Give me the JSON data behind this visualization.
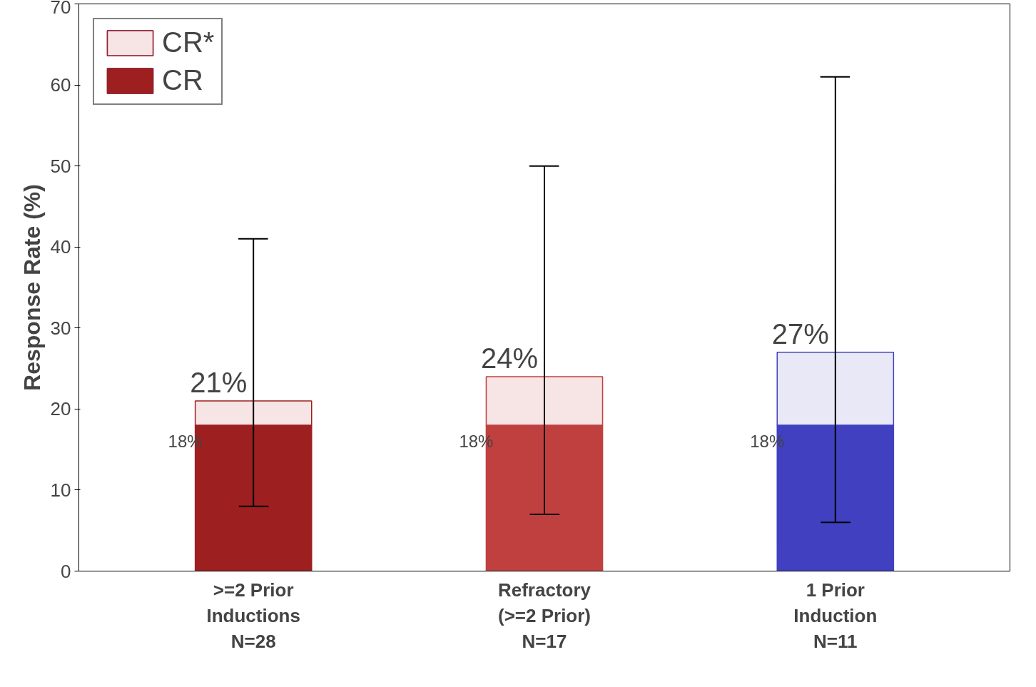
{
  "chart_data": {
    "type": "bar",
    "stacked": true,
    "ylabel": "Response Rate (%)",
    "categories": [
      ">=2 Prior\nInductions\nN=28",
      "Refractory\n(>=2 Prior)\nN=17",
      "1 Prior\nInduction\nN=11"
    ],
    "series": [
      {
        "name": "CR",
        "colors": [
          "#9e1f1f",
          "#c04040",
          "#4040c0"
        ],
        "values": [
          18,
          18,
          18
        ],
        "value_labels": [
          "18%",
          "18%",
          "18%"
        ]
      },
      {
        "name": "CR*",
        "colors": [
          "#f7e4e4",
          "#f7e4e4",
          "#e8e8f7"
        ],
        "values": [
          3,
          6,
          9
        ],
        "errors": [
          [
            8,
            41
          ],
          [
            7,
            50
          ],
          [
            6,
            61
          ]
        ]
      }
    ],
    "totals": [
      "21%",
      "24%",
      "27%"
    ],
    "ylim": [
      0,
      70
    ],
    "yticks": [
      0,
      10,
      20,
      30,
      40,
      50,
      60,
      70
    ],
    "grid": false,
    "legend": "top left"
  }
}
